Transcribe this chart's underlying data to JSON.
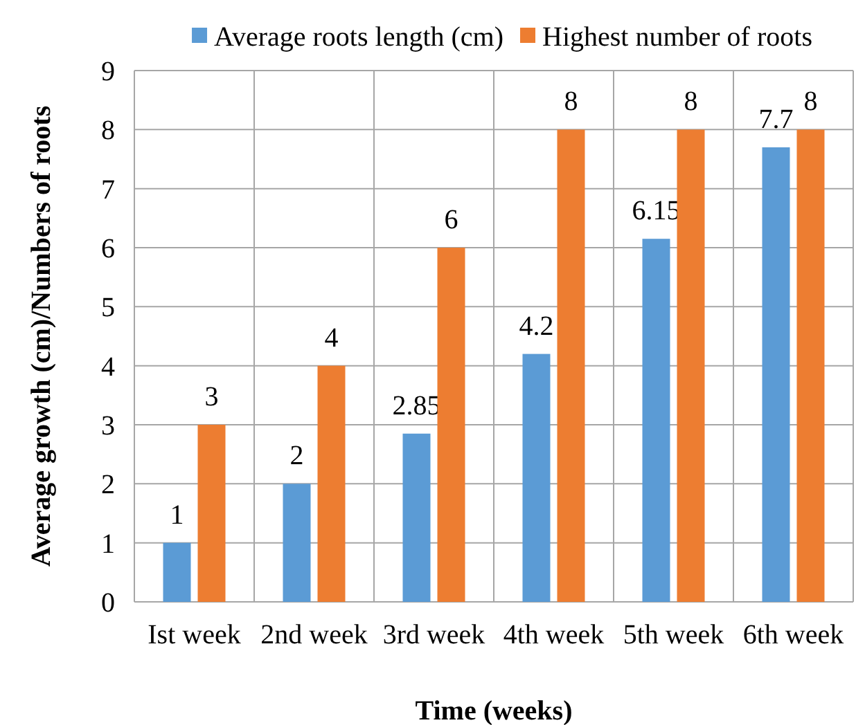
{
  "chart_data": {
    "type": "bar",
    "xlabel": "Time (weeks)",
    "ylabel": "Average growth (cm)/Numbers of roots",
    "categories": [
      "Ist week",
      "2nd week",
      "3rd week",
      "4th week",
      "5th week",
      "6th week"
    ],
    "series": [
      {
        "name": "Average roots length (cm)",
        "color": "#5b9bd5",
        "values": [
          1,
          2,
          2.85,
          4.2,
          6.15,
          7.7
        ]
      },
      {
        "name": "Highest number of roots",
        "color": "#ed7d31",
        "values": [
          3,
          4,
          6,
          8,
          8,
          8
        ]
      }
    ],
    "ylim": [
      0,
      9
    ],
    "yticks": [
      0,
      1,
      2,
      3,
      4,
      5,
      6,
      7,
      8,
      9
    ],
    "grid": true,
    "legend": "top",
    "data_labels": true
  }
}
